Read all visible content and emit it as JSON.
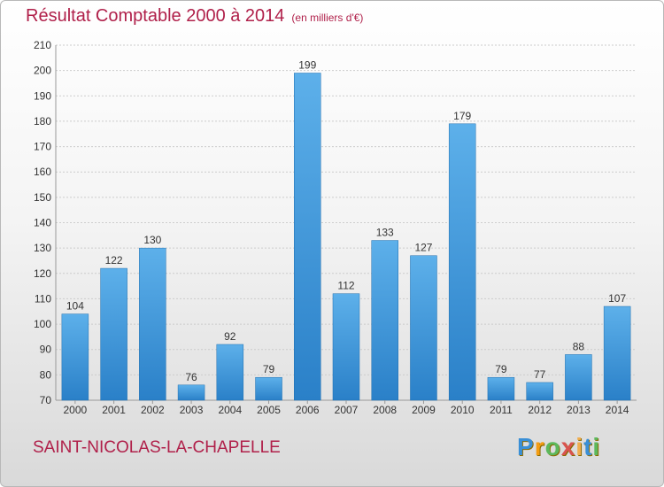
{
  "header": {
    "title": "Résultat Comptable 2000 à 2014",
    "subtitle": "(en milliers d'€)"
  },
  "footer": {
    "place_name": "SAINT-NICOLAS-LA-CHAPELLE",
    "brand_letters": [
      "P",
      "r",
      "o",
      "x",
      "i",
      "t",
      "i"
    ],
    "brand_colors": [
      "#3a8fd6",
      "#f39c12",
      "#5cb85c",
      "#d9534f",
      "#f0ad4e",
      "#3a8fd6",
      "#5cb85c"
    ]
  },
  "colors": {
    "bar_light": "#5db0ea",
    "bar_dark": "#2a80c8",
    "title": "#b0204a",
    "grid": "#cccccc",
    "axis_text": "#333333"
  },
  "chart_data": {
    "type": "bar",
    "title": "Résultat Comptable 2000 à 2014",
    "subtitle": "(en milliers d'€)",
    "xlabel": "",
    "ylabel": "",
    "categories": [
      "2000",
      "2001",
      "2002",
      "2003",
      "2004",
      "2005",
      "2006",
      "2007",
      "2008",
      "2009",
      "2010",
      "2011",
      "2012",
      "2013",
      "2014"
    ],
    "values": [
      104,
      122,
      130,
      76,
      92,
      79,
      199,
      112,
      133,
      127,
      179,
      79,
      77,
      88,
      107
    ],
    "ylim": [
      70,
      210
    ],
    "yticks": [
      70,
      80,
      90,
      100,
      110,
      120,
      130,
      140,
      150,
      160,
      170,
      180,
      190,
      200,
      210
    ],
    "grid": true
  }
}
